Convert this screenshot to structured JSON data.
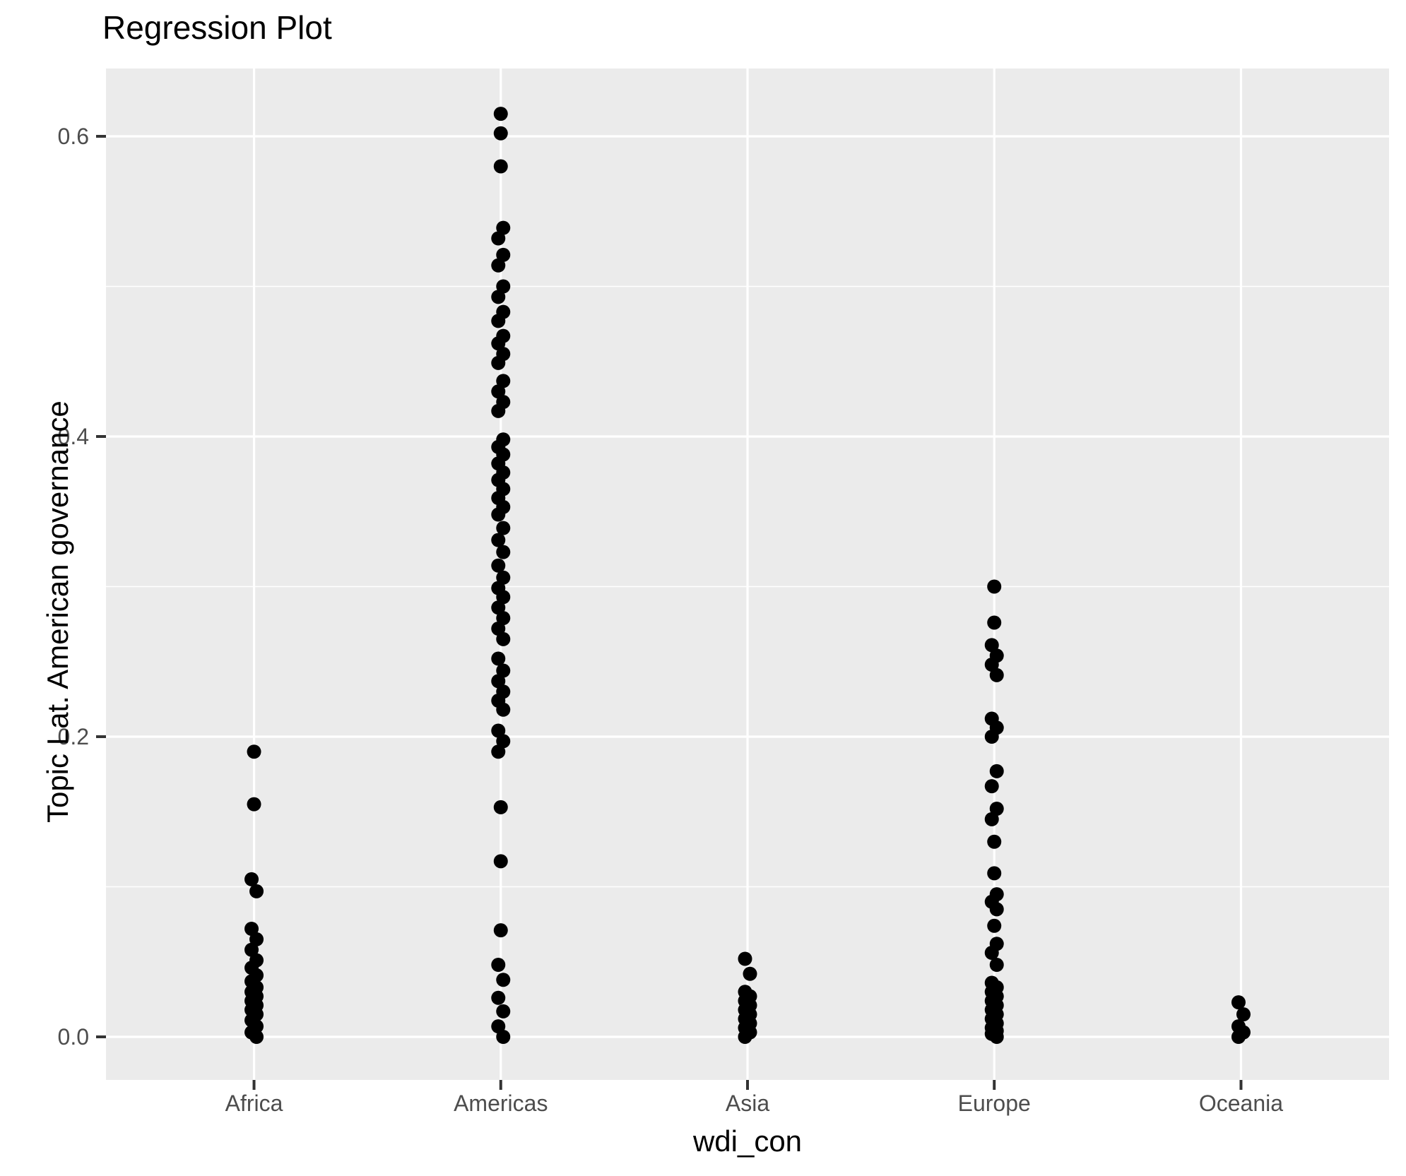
{
  "title": "Regression Plot",
  "axes": {
    "x": {
      "title": "wdi_con"
    },
    "y": {
      "title": "Topic Lat. American governance",
      "tick_labels": [
        "0.0",
        "0.2",
        "0.4",
        "0.6"
      ]
    }
  },
  "colors": {
    "panel_background": "#EBEBEB",
    "gridline": "#FFFFFF",
    "point": "#000000",
    "tick_label": "#4D4D4D",
    "tick_mark": "#333333",
    "title_text": "#000000"
  },
  "chart_data": {
    "type": "scatter",
    "title": "Regression Plot",
    "xlabel": "wdi_con",
    "ylabel": "Topic Lat. American governance",
    "x_type": "categorical",
    "categories": [
      "Africa",
      "Americas",
      "Asia",
      "Europe",
      "Oceania"
    ],
    "y_major_ticks": [
      0.0,
      0.2,
      0.4,
      0.6
    ],
    "y_minor_ticks": [
      0.1,
      0.3,
      0.5
    ],
    "ylim": [
      -0.029,
      0.648
    ],
    "grid": "major-and-minor-horizontal, major-vertical",
    "legend": "none",
    "series": [
      {
        "name": "Africa",
        "values": [
          0.19,
          0.155,
          0.105,
          0.097,
          0.072,
          0.065,
          0.058,
          0.051,
          0.046,
          0.041,
          0.037,
          0.033,
          0.03,
          0.027,
          0.024,
          0.021,
          0.018,
          0.015,
          0.011,
          0.007,
          0.003,
          0.0
        ]
      },
      {
        "name": "Americas",
        "values": [
          0.615,
          0.602,
          0.58,
          0.539,
          0.532,
          0.521,
          0.514,
          0.5,
          0.493,
          0.483,
          0.477,
          0.467,
          0.462,
          0.455,
          0.449,
          0.437,
          0.43,
          0.423,
          0.417,
          0.398,
          0.393,
          0.388,
          0.382,
          0.376,
          0.371,
          0.365,
          0.359,
          0.353,
          0.348,
          0.339,
          0.331,
          0.323,
          0.314,
          0.306,
          0.299,
          0.293,
          0.286,
          0.279,
          0.272,
          0.265,
          0.252,
          0.244,
          0.237,
          0.23,
          0.224,
          0.218,
          0.204,
          0.197,
          0.19,
          0.153,
          0.117,
          0.071,
          0.048,
          0.038,
          0.026,
          0.017,
          0.007,
          0.0
        ]
      },
      {
        "name": "Asia",
        "values": [
          0.052,
          0.042,
          0.03,
          0.027,
          0.024,
          0.021,
          0.018,
          0.015,
          0.012,
          0.009,
          0.006,
          0.003,
          0.0
        ]
      },
      {
        "name": "Europe",
        "values": [
          0.3,
          0.276,
          0.261,
          0.254,
          0.248,
          0.241,
          0.212,
          0.206,
          0.2,
          0.177,
          0.167,
          0.152,
          0.145,
          0.13,
          0.109,
          0.095,
          0.09,
          0.085,
          0.074,
          0.062,
          0.056,
          0.048,
          0.036,
          0.033,
          0.03,
          0.027,
          0.024,
          0.021,
          0.018,
          0.015,
          0.012,
          0.009,
          0.006,
          0.004,
          0.002,
          0.0
        ]
      },
      {
        "name": "Oceania",
        "values": [
          0.023,
          0.015,
          0.007,
          0.003,
          0.0
        ]
      }
    ]
  }
}
